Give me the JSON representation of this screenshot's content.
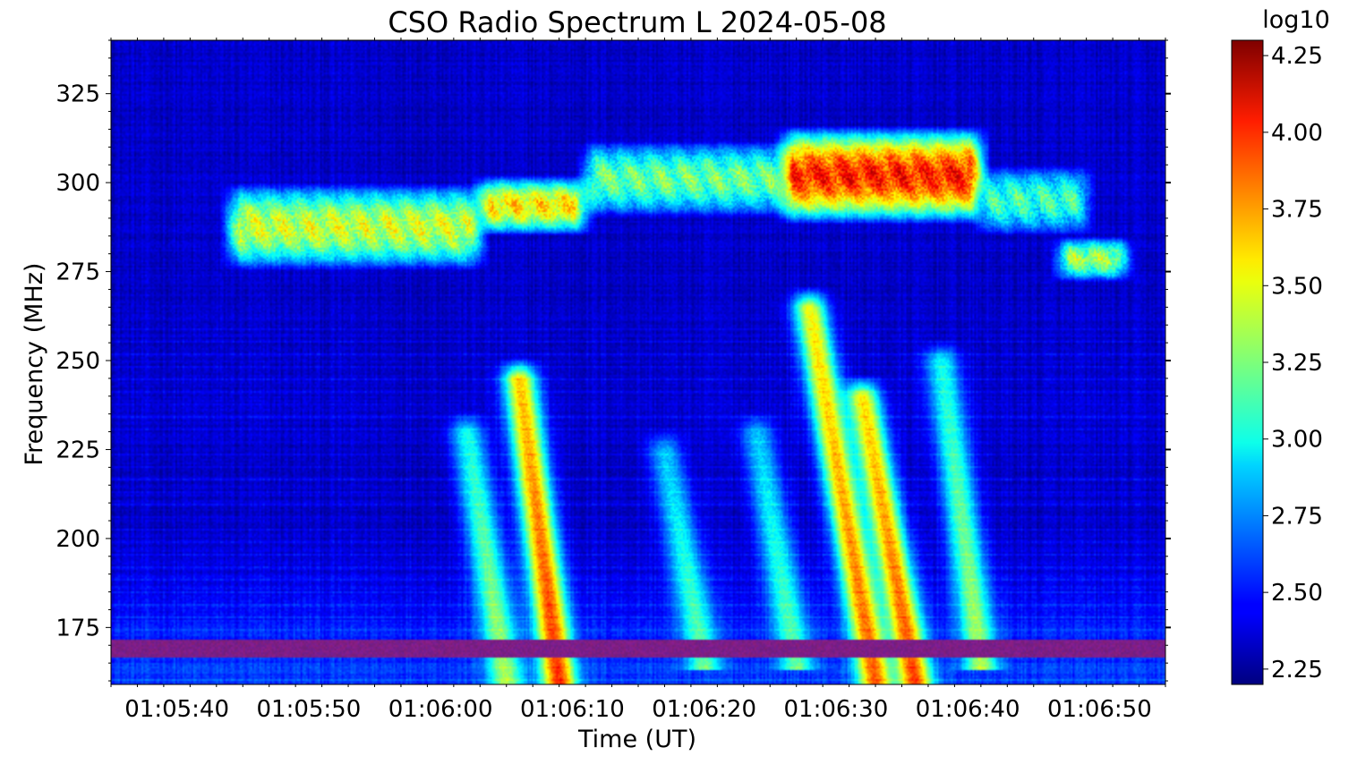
{
  "chart_data": {
    "type": "heatmap",
    "title": "CSO Radio Spectrum L 2024-05-08",
    "xlabel": "Time (UT)",
    "ylabel": "Frequency (MHz)",
    "x_unit": "time",
    "x_ticks": [
      "01:05:40",
      "01:05:50",
      "01:06:00",
      "01:06:10",
      "01:06:20",
      "01:06:30",
      "01:06:40",
      "01:06:50"
    ],
    "xlim": [
      "01:05:35",
      "01:06:55"
    ],
    "y_ticks": [
      175,
      200,
      225,
      250,
      275,
      300,
      325
    ],
    "ylim": [
      159,
      340
    ],
    "grid": false,
    "colormap": "jet",
    "colorbar": {
      "label": "log10",
      "ticks": [
        2.25,
        2.5,
        2.75,
        3.0,
        3.25,
        3.5,
        3.75,
        4.0,
        4.25
      ],
      "tick_labels": [
        "2.25",
        "2.50",
        "2.75",
        "3.00",
        "3.25",
        "3.50",
        "3.75",
        "4.00",
        "4.25"
      ],
      "range": [
        2.2,
        4.3
      ]
    },
    "features": [
      {
        "kind": "band",
        "t_start": "01:05:44",
        "t_end": "01:06:03",
        "f_low": 275,
        "f_high": 300,
        "value": 3.4
      },
      {
        "kind": "band",
        "t_start": "01:06:03",
        "t_end": "01:06:11",
        "f_low": 285,
        "f_high": 302,
        "value": 3.55
      },
      {
        "kind": "band",
        "t_start": "01:06:11",
        "t_end": "01:06:26",
        "f_low": 290,
        "f_high": 312,
        "value": 3.2
      },
      {
        "kind": "band",
        "t_start": "01:06:26",
        "t_end": "01:06:41",
        "f_low": 288,
        "f_high": 316,
        "value": 3.95
      },
      {
        "kind": "band",
        "t_start": "01:06:41",
        "t_end": "01:06:49",
        "f_low": 285,
        "f_high": 305,
        "value": 3.1
      },
      {
        "kind": "band",
        "t_start": "01:06:47",
        "t_end": "01:06:52",
        "f_low": 272,
        "f_high": 285,
        "value": 3.3
      },
      {
        "kind": "drift",
        "t_top": "01:06:06",
        "t_bottom": "01:06:09",
        "f_top": 245,
        "f_bottom": 160,
        "value": 3.6
      },
      {
        "kind": "drift",
        "t_top": "01:06:28",
        "t_bottom": "01:06:33",
        "f_top": 265,
        "f_bottom": 160,
        "value": 3.5
      },
      {
        "kind": "drift",
        "t_top": "01:06:32",
        "t_bottom": "01:06:36",
        "f_top": 240,
        "f_bottom": 160,
        "value": 3.55
      },
      {
        "kind": "drift",
        "t_top": "01:06:02",
        "t_bottom": "01:06:05",
        "f_top": 230,
        "f_bottom": 160,
        "value": 3.0
      },
      {
        "kind": "drift",
        "t_top": "01:06:38",
        "t_bottom": "01:06:41",
        "f_top": 250,
        "f_bottom": 165,
        "value": 3.0
      },
      {
        "kind": "drift",
        "t_top": "01:06:17",
        "t_bottom": "01:06:20",
        "f_top": 225,
        "f_bottom": 165,
        "value": 2.85
      },
      {
        "kind": "drift",
        "t_top": "01:06:24",
        "t_bottom": "01:06:27",
        "f_top": 230,
        "f_bottom": 165,
        "value": 2.85
      },
      {
        "kind": "interference",
        "f": 169,
        "value": 2.2
      }
    ]
  }
}
